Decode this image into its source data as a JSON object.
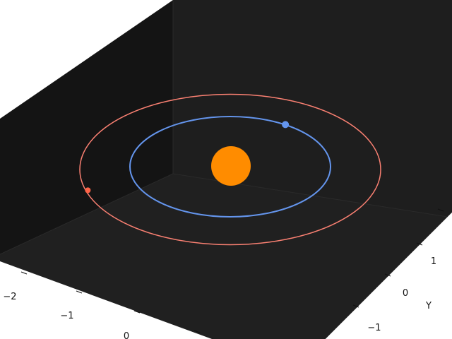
{
  "chart_data": {
    "type": "scatter",
    "projection": "3d",
    "title": "",
    "xlabel": "",
    "ylabel": "Y",
    "zlabel": "",
    "x_ticks": [
      "−2",
      "−1",
      "0"
    ],
    "y_ticks": [
      "−1",
      "0",
      "1"
    ],
    "grid": false,
    "legend": "none",
    "colors": {
      "pane_dark": "#141414",
      "pane_side": "#1e1e1e",
      "floor": "#202020",
      "sun": "#ff8c00",
      "inner_orbit": "#6495ed",
      "outer_orbit": "#fa8072",
      "inner_planet": "#6495ed",
      "outer_planet": "#ff6347"
    },
    "series": [
      {
        "kind": "sun",
        "x": 0,
        "y": 0,
        "z": 0
      },
      {
        "kind": "orbit",
        "radius": 1.0
      },
      {
        "kind": "orbit",
        "radius": 1.5
      },
      {
        "kind": "planet",
        "orbit_radius": 1.0,
        "x": 0.55,
        "y": 0.84,
        "z": 0
      },
      {
        "kind": "planet",
        "orbit_radius": 1.5,
        "x": -1.42,
        "y": -0.47,
        "z": 0
      }
    ]
  }
}
